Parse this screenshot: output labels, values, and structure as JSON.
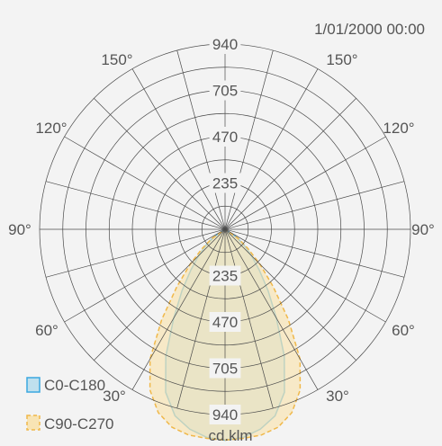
{
  "chart_data": {
    "type": "polar",
    "timestamp": "1/01/2000 00:00",
    "unit": "cd.klm",
    "radial_ticks": [
      235,
      470,
      705,
      940
    ],
    "rmax": 940,
    "angle_labels": [
      "150°",
      "150°",
      "120°",
      "120°",
      "90°",
      "90°",
      "60°",
      "60°",
      "30°",
      "30°"
    ],
    "grid": true,
    "legend_position": "bottom-left",
    "series": [
      {
        "name": "C0-C180",
        "color": "#3aa8e0",
        "fill": "#bfe0ee",
        "gamma": [
          0,
          5,
          10,
          15,
          20,
          25,
          30,
          35,
          40,
          45,
          50,
          55,
          60
        ],
        "intensity": [
          1070,
          1060,
          1030,
          980,
          880,
          710,
          520,
          380,
          270,
          190,
          125,
          70,
          0
        ]
      },
      {
        "name": "C90-C270",
        "color": "#f0b84a",
        "fill": "#f8e4b4",
        "gamma": [
          0,
          5,
          10,
          15,
          20,
          25,
          30,
          35,
          40,
          45,
          50,
          55,
          60
        ],
        "intensity": [
          1070,
          1065,
          1060,
          1040,
          990,
          900,
          760,
          560,
          380,
          250,
          150,
          80,
          0
        ]
      }
    ]
  }
}
